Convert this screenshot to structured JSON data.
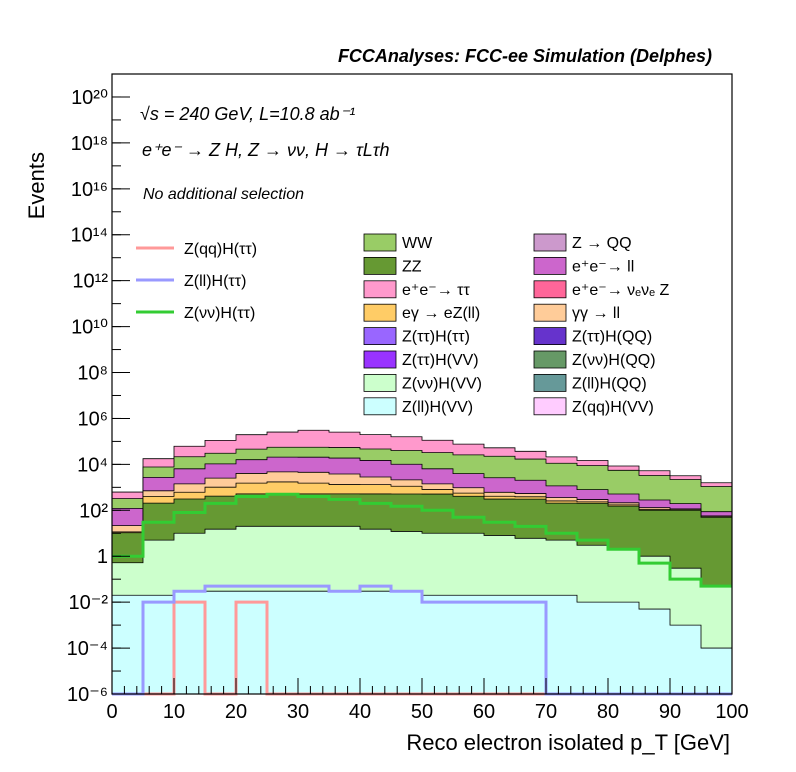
{
  "header": {
    "title": "FCCAnalyses: FCC-ee Simulation (Delphes)"
  },
  "annotations": {
    "line1": "√s = 240 GeV, L=10.8 ab⁻¹",
    "line2": "e⁺e⁻ → Z H, Z → νν, H → τLτh",
    "line3": "No additional selection"
  },
  "chart_data": {
    "type": "area",
    "title": "FCCAnalyses: FCC-ee Simulation (Delphes)",
    "xlabel": "Reco electron isolated p_T [GeV]",
    "ylabel": "Events",
    "xlim": [
      0,
      100
    ],
    "ylim": [
      1e-06,
      1e+21
    ],
    "yscale": "log",
    "x_ticks": [
      "0",
      "10",
      "20",
      "30",
      "40",
      "50",
      "60",
      "70",
      "80",
      "90",
      "100"
    ],
    "y_ticks": [
      "10⁻⁶",
      "10⁻⁴",
      "10⁻²",
      "1",
      "10²",
      "10⁴",
      "10⁶",
      "10⁸",
      "10¹⁰",
      "10¹²",
      "10¹⁴",
      "10¹⁶",
      "10¹⁸",
      "10²⁰"
    ],
    "grid": false,
    "legend_position": "middle",
    "x": [
      0,
      5,
      10,
      15,
      20,
      25,
      30,
      35,
      40,
      45,
      50,
      55,
      60,
      65,
      70,
      75,
      80,
      85,
      90,
      95,
      100
    ],
    "stack": [
      {
        "name": "Z(ll)H(VV)",
        "color": "#ccffff",
        "values": [
          0.02,
          0.02,
          0.03,
          0.03,
          0.03,
          0.03,
          0.03,
          0.03,
          0.03,
          0.03,
          0.02,
          0.02,
          0.02,
          0.02,
          0.02,
          0.01,
          0.01,
          0.005,
          0.001,
          0.0001,
          0.0001
        ]
      },
      {
        "name": "Z(νν)H(VV)",
        "color": "#ccffcc",
        "values": [
          0.5,
          5,
          10,
          15,
          20,
          20,
          20,
          20,
          15,
          12,
          10,
          10,
          8,
          6,
          5,
          3,
          2,
          1,
          0.3,
          0.05,
          0.05
        ]
      },
      {
        "name": "ZZ",
        "color": "#669933",
        "values": [
          10,
          200,
          300,
          400,
          500,
          500,
          500,
          500,
          500,
          500,
          500,
          400,
          300,
          300,
          200,
          200,
          150,
          100,
          100,
          50,
          50
        ]
      },
      {
        "name": "eγ → eZ(ll)",
        "color": "#ffcc66",
        "values": [
          1,
          200,
          300,
          600,
          1000,
          1200,
          1000,
          800,
          800,
          600,
          300,
          150,
          100,
          80,
          50,
          30,
          20,
          10,
          5,
          2,
          2
        ]
      },
      {
        "name": "γγ → ll",
        "color": "#ffcc99",
        "values": [
          10,
          300,
          800,
          1500,
          2500,
          3000,
          3000,
          2500,
          1500,
          1000,
          600,
          400,
          200,
          150,
          100,
          60,
          40,
          20,
          10,
          5,
          5
        ]
      },
      {
        "name": "e⁺e⁻ → ll",
        "color": "#cc66cc",
        "values": [
          100,
          2000,
          5000,
          8000,
          12000,
          16000,
          16000,
          15000,
          12000,
          8000,
          5000,
          3000,
          2000,
          1500,
          800,
          500,
          300,
          150,
          80,
          30,
          30
        ]
      },
      {
        "name": "WW",
        "color": "#99cc66",
        "values": [
          200,
          5000,
          15000,
          20000,
          30000,
          35000,
          35000,
          35000,
          32000,
          30000,
          26000,
          22000,
          20000,
          15000,
          10000,
          8000,
          5000,
          3000,
          2000,
          1000,
          1000
        ]
      },
      {
        "name": "e⁺e⁻ → ττ",
        "color": "#ff99cc",
        "values": [
          300,
          10000,
          40000,
          80000,
          150000,
          200000,
          250000,
          200000,
          150000,
          120000,
          80000,
          50000,
          30000,
          20000,
          10000,
          6000,
          3000,
          2000,
          1000,
          500,
          500
        ]
      }
    ],
    "lines": [
      {
        "name": "Z(qq)H(ττ)",
        "color": "#ff9999",
        "values": [
          1e-06,
          1e-06,
          0.01,
          1e-06,
          0.01,
          1e-06,
          1e-06,
          1e-06,
          1e-06,
          1e-06,
          1e-06,
          1e-06,
          1e-06,
          1e-06,
          1e-06,
          1e-06,
          1e-06,
          1e-06,
          1e-06,
          1e-06,
          1e-06
        ]
      },
      {
        "name": "Z(ll)H(ττ)",
        "color": "#9999ff",
        "values": [
          1e-06,
          0.01,
          0.03,
          0.05,
          0.05,
          0.05,
          0.05,
          0.03,
          0.05,
          0.03,
          0.01,
          0.01,
          0.01,
          0.01,
          1e-06,
          1e-06,
          1e-06,
          1e-06,
          1e-06,
          1e-06,
          1e-06
        ]
      },
      {
        "name": "Z(νν)H(ττ)",
        "color": "#33cc33",
        "values": [
          1,
          30,
          80,
          200,
          400,
          500,
          400,
          300,
          200,
          150,
          100,
          50,
          30,
          20,
          10,
          5,
          2,
          0.5,
          0.1,
          0.05,
          0.05
        ]
      }
    ],
    "legend_left": [
      {
        "name": "Z(qq)H(ττ)",
        "color": "#ff9999"
      },
      {
        "name": "Z(ll)H(ττ)",
        "color": "#9999ff"
      },
      {
        "name": "Z(νν)H(ττ)",
        "color": "#33cc33"
      }
    ],
    "legend_mid": [
      {
        "name": "WW",
        "color": "#99cc66"
      },
      {
        "name": "ZZ",
        "color": "#669933"
      },
      {
        "name": "e⁺e⁻→ ττ",
        "color": "#ff99cc"
      },
      {
        "name": "eγ → eZ(ll)",
        "color": "#ffcc66"
      },
      {
        "name": "Z(ττ)H(ττ)",
        "color": "#9966ff"
      },
      {
        "name": "Z(ττ)H(VV)",
        "color": "#9933ff"
      },
      {
        "name": "Z(νν)H(VV)",
        "color": "#ccffcc"
      },
      {
        "name": "Z(ll)H(VV)",
        "color": "#ccffff"
      }
    ],
    "legend_right": [
      {
        "name": "Z → QQ",
        "color": "#cc99cc"
      },
      {
        "name": "e⁺e⁻→ ll",
        "color": "#cc66cc"
      },
      {
        "name": "e⁺e⁻→ νₑνₑ Z",
        "color": "#ff6699"
      },
      {
        "name": "γγ → ll",
        "color": "#ffcc99"
      },
      {
        "name": "Z(ττ)H(QQ)",
        "color": "#6633cc"
      },
      {
        "name": "Z(νν)H(QQ)",
        "color": "#669966"
      },
      {
        "name": "Z(ll)H(QQ)",
        "color": "#669999"
      },
      {
        "name": "Z(qq)H(VV)",
        "color": "#ffccff"
      }
    ]
  }
}
